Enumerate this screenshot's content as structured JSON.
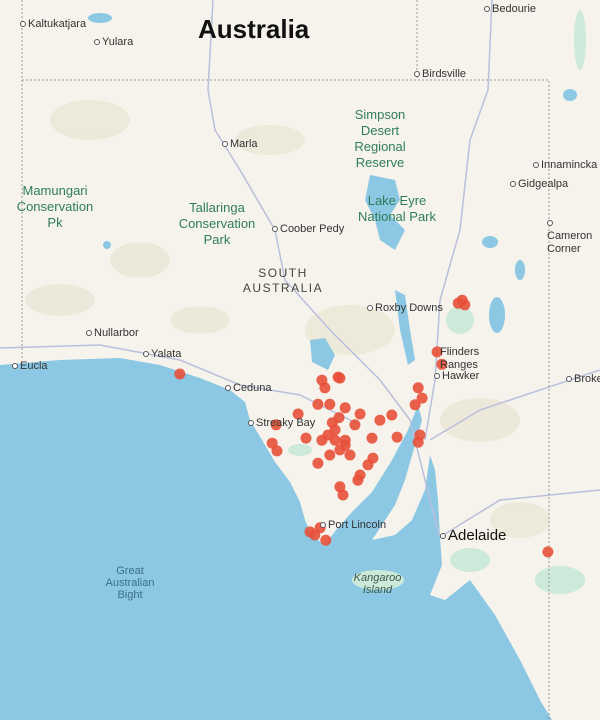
{
  "map": {
    "title": "Australia",
    "state_label": "SOUTH AUSTRALIA",
    "colors": {
      "land": "#f6f3ec",
      "water": "#8cc8e4",
      "park": "#cde9da",
      "marker": "#e8503a",
      "road": "#b9bfdc"
    },
    "towns": [
      "Kaltukatjara",
      "Yulara",
      "Bedourie",
      "Birdsville",
      "Marla",
      "Innamincka",
      "Gidgealpa",
      "Cameron Corner",
      "Coober Pedy",
      "Roxby Downs",
      "Nullarbor",
      "Yalata",
      "Eucla",
      "Ceduna",
      "Streaky Bay",
      "Hawker",
      "Port Lincoln",
      "Adelaide",
      "Broken Hill"
    ],
    "parks": [
      "Simpson Desert Regional Reserve",
      "Lake Eyre National Park",
      "Mamungari Conservation Pk",
      "Tallaringa Conservation Park",
      "Flinders Ranges"
    ],
    "water_labels": [
      "Great Australian Bight"
    ],
    "islands": [
      "Kangaroo Island"
    ],
    "markers": [
      [
        132.58,
        -31.75
      ],
      [
        139.0,
        -30.31
      ],
      [
        139.06,
        -30.4
      ],
      [
        138.91,
        -30.37
      ],
      [
        138.43,
        -31.32
      ],
      [
        138.54,
        -31.56
      ],
      [
        135.81,
        -31.87
      ],
      [
        136.18,
        -31.81
      ],
      [
        135.88,
        -32.02
      ],
      [
        136.22,
        -31.83
      ],
      [
        135.72,
        -32.34
      ],
      [
        135.99,
        -32.34
      ],
      [
        136.34,
        -32.41
      ],
      [
        136.68,
        -32.53
      ],
      [
        135.27,
        -32.53
      ],
      [
        134.77,
        -32.74
      ],
      [
        134.68,
        -33.1
      ],
      [
        134.79,
        -33.25
      ],
      [
        135.45,
        -33.0
      ],
      [
        135.81,
        -33.04
      ],
      [
        136.11,
        -32.84
      ],
      [
        136.34,
        -33.04
      ],
      [
        136.56,
        -32.74
      ],
      [
        136.22,
        -33.23
      ],
      [
        136.45,
        -33.33
      ],
      [
        135.99,
        -33.33
      ],
      [
        136.95,
        -33.0
      ],
      [
        137.13,
        -32.65
      ],
      [
        137.4,
        -32.55
      ],
      [
        137.52,
        -32.98
      ],
      [
        138.0,
        -32.02
      ],
      [
        138.09,
        -32.22
      ],
      [
        137.93,
        -32.35
      ],
      [
        138.04,
        -32.94
      ],
      [
        138.0,
        -33.08
      ],
      [
        136.97,
        -33.39
      ],
      [
        136.86,
        -33.52
      ],
      [
        136.68,
        -33.72
      ],
      [
        136.63,
        -33.82
      ],
      [
        136.22,
        -33.95
      ],
      [
        136.29,
        -34.11
      ],
      [
        135.72,
        -33.49
      ],
      [
        135.77,
        -34.75
      ],
      [
        135.54,
        -34.83
      ],
      [
        135.9,
        -34.99
      ],
      [
        135.65,
        -34.89
      ],
      [
        140.95,
        -35.22
      ],
      [
        136.11,
        -33.04
      ],
      [
        136.34,
        -33.14
      ],
      [
        135.95,
        -32.94
      ],
      [
        136.2,
        -32.6
      ],
      [
        136.05,
        -32.7
      ]
    ]
  }
}
